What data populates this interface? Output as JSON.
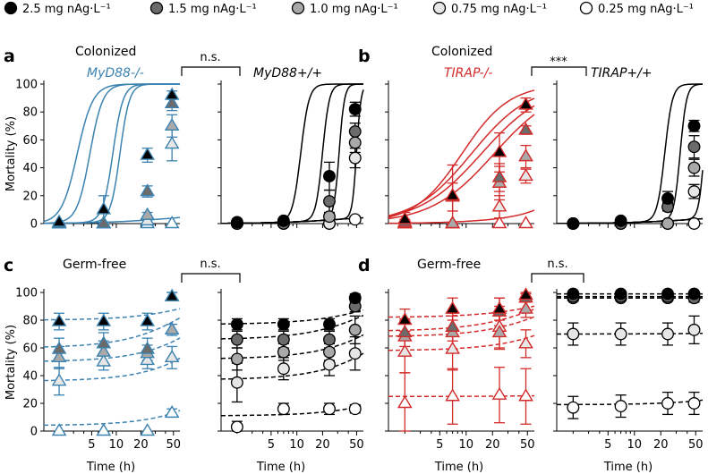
{
  "legend": {
    "entries": [
      {
        "label": "2.5 mg nAg·L⁻¹",
        "fill": "#000000"
      },
      {
        "label": "1.5 mg nAg·L⁻¹",
        "fill": "#6b6b6b"
      },
      {
        "label": "1.0 mg nAg·L⁻¹",
        "fill": "#a9a9a9"
      },
      {
        "label": "0.75 mg nAg·L⁻¹",
        "fill": "#e6e6e6"
      },
      {
        "label": "0.25 mg nAg·L⁻¹",
        "fill": "#ffffff"
      }
    ]
  },
  "colors": {
    "blue": "#3b82b0",
    "red": "#d32a2a",
    "black": "#000000"
  },
  "panel_labels": {
    "a": "a",
    "b": "b",
    "c": "c",
    "d": "d"
  },
  "titles": {
    "a": "Colonized",
    "b": "Colonized",
    "c": "Germ-free",
    "d": "Germ-free",
    "a_left": "MyD88-/-",
    "a_right": "MyD88+/+",
    "b_left": "TIRAP-/-",
    "b_right": "TIRAP+/+"
  },
  "significance": {
    "a": "n.s.",
    "b": "***",
    "c": "n.s.",
    "d": "n.s."
  },
  "axes": {
    "ylabel": "Mortality (%)",
    "xlabel": "Time (h)",
    "yticks": [
      "0",
      "20",
      "40",
      "60",
      "80",
      "100"
    ],
    "xticks": [
      "5",
      "10",
      "20",
      "50"
    ],
    "xscale": "log",
    "xlim": [
      1.3,
      60
    ],
    "ylim": [
      0,
      100
    ]
  },
  "chart_data": [
    {
      "type": "line",
      "panel": "a",
      "subpanel": "left",
      "group": "MyD88-/-",
      "curve": "sigmoid fit",
      "color": "blue",
      "marker": "triangle",
      "x": [
        2,
        7,
        24,
        48
      ],
      "series": [
        {
          "name": "2.5 mg nAg·L⁻¹",
          "values": [
            1,
            10,
            49,
            92
          ],
          "err": [
            0,
            10,
            5,
            3
          ],
          "fit": [
            0.03,
            0.3,
            4.5
          ]
        },
        {
          "name": "1.5 mg nAg·L⁻¹",
          "values": [
            0,
            0,
            23,
            86
          ],
          "err": [
            0,
            0,
            4,
            5
          ],
          "fit": [
            0.03,
            0.21,
            5.5
          ]
        },
        {
          "name": "1.0 mg nAg·L⁻¹",
          "values": [
            0,
            0,
            6,
            70
          ],
          "err": [
            0,
            0,
            2,
            8
          ],
          "fit": [
            0.03,
            0.11,
            7
          ]
        },
        {
          "name": "0.75 mg nAg·L⁻¹",
          "values": [
            0,
            0,
            2,
            57
          ],
          "err": [
            0,
            0,
            2,
            12
          ],
          "fit": [
            0.03,
            0.09,
            7.5
          ]
        },
        {
          "name": "0.25 mg nAg·L⁻¹",
          "values": [
            0,
            0,
            0,
            0
          ],
          "err": [
            0,
            0,
            0,
            0
          ],
          "fit": [
            0.03,
            0.006,
            6
          ]
        }
      ]
    },
    {
      "type": "line",
      "panel": "a",
      "subpanel": "right",
      "group": "MyD88+/+",
      "curve": "sigmoid fit",
      "color": "black",
      "marker": "circle",
      "x": [
        2,
        7,
        24,
        48
      ],
      "series": [
        {
          "name": "2.5 mg nAg·L⁻¹",
          "values": [
            1,
            2,
            34,
            82
          ],
          "err": [
            0,
            2,
            10,
            5
          ],
          "fit": [
            0.03,
            0.09,
            9
          ]
        },
        {
          "name": "1.5 mg nAg·L⁻¹",
          "values": [
            0,
            0,
            16,
            66
          ],
          "err": [
            0,
            0,
            8,
            6
          ],
          "fit": [
            0.03,
            0.05,
            11
          ]
        },
        {
          "name": "1.0 mg nAg·L⁻¹",
          "values": [
            0,
            0,
            5,
            58
          ],
          "err": [
            0,
            0,
            3,
            7
          ],
          "fit": [
            0.03,
            0.032,
            14
          ]
        },
        {
          "name": "0.75 mg nAg·L⁻¹",
          "values": [
            0,
            0,
            0,
            47
          ],
          "err": [
            0,
            0,
            0,
            7
          ],
          "fit": [
            0.03,
            0.02,
            17
          ]
        },
        {
          "name": "0.25 mg nAg·L⁻¹",
          "values": [
            0,
            0,
            0,
            3
          ],
          "err": [
            0,
            0,
            0,
            2
          ],
          "fit": [
            0.03,
            0.0012,
            20
          ]
        }
      ]
    },
    {
      "type": "line",
      "panel": "b",
      "subpanel": "left",
      "group": "TIRAP-/-",
      "curve": "sigmoid fit",
      "color": "red",
      "marker": "triangle",
      "x": [
        2,
        7,
        24,
        48
      ],
      "series": [
        {
          "name": "2.5 mg nAg·L⁻¹",
          "values": [
            3,
            20,
            51,
            85
          ],
          "err": [
            5,
            22,
            14,
            5
          ],
          "fit": [
            0.035,
            0.11,
            1.6
          ]
        },
        {
          "name": "1.5 mg nAg·L⁻¹",
          "values": [
            1,
            19,
            33,
            67
          ],
          "err": [
            2,
            10,
            10,
            3
          ],
          "fit": [
            0.035,
            0.085,
            1.3
          ]
        },
        {
          "name": "1.0 mg nAg·L⁻¹",
          "values": [
            0,
            0,
            29,
            48
          ],
          "err": [
            0,
            0,
            12,
            8
          ],
          "fit": [
            0.035,
            0.065,
            1.2
          ]
        },
        {
          "name": "0.75 mg nAg·L⁻¹",
          "values": [
            0,
            0,
            12,
            34
          ],
          "err": [
            0,
            0,
            8,
            5
          ],
          "fit": [
            0.035,
            0.046,
            1.2
          ]
        },
        {
          "name": "0.25 mg nAg·L⁻¹",
          "values": [
            0,
            0,
            0,
            0
          ],
          "err": [
            0,
            0,
            0,
            0
          ],
          "fit": [
            0.035,
            0.004,
            2
          ]
        }
      ]
    },
    {
      "type": "line",
      "panel": "b",
      "subpanel": "right",
      "group": "TIRAP+/+",
      "curve": "sigmoid fit",
      "color": "black",
      "marker": "circle",
      "x": [
        2,
        7,
        24,
        48
      ],
      "series": [
        {
          "name": "2.5 mg nAg·L⁻¹",
          "values": [
            0,
            2,
            18,
            70
          ],
          "err": [
            0,
            2,
            5,
            4
          ],
          "fit": [
            0.02,
            0.045,
            10
          ]
        },
        {
          "name": "1.5 mg nAg·L⁻¹",
          "values": [
            0,
            0,
            12,
            55
          ],
          "err": [
            0,
            0,
            3,
            8
          ],
          "fit": [
            0.02,
            0.03,
            12
          ]
        },
        {
          "name": "1.0 mg nAg·L⁻¹",
          "values": [
            0,
            0,
            0,
            40
          ],
          "err": [
            0,
            0,
            0,
            6
          ],
          "fit": [
            0.02,
            0.016,
            14
          ]
        },
        {
          "name": "0.75 mg nAg·L⁻¹",
          "values": [
            0,
            0,
            0,
            23
          ],
          "err": [
            0,
            0,
            0,
            5
          ],
          "fit": [
            0.02,
            0.008,
            16
          ]
        },
        {
          "name": "0.25 mg nAg·L⁻¹",
          "values": [
            0,
            0,
            0,
            0
          ],
          "err": [
            0,
            0,
            0,
            0
          ],
          "fit": [
            0.02,
            0.0008,
            16
          ]
        }
      ]
    },
    {
      "type": "line",
      "panel": "c",
      "subpanel": "left",
      "group": "MyD88-/-",
      "curve": "exponential fit",
      "color": "blue",
      "marker": "triangle",
      "x": [
        2,
        7,
        24,
        48
      ],
      "series": [
        {
          "name": "2.5 mg nAg·L⁻¹",
          "values": [
            79,
            79,
            79,
            97
          ],
          "err": [
            6,
            6,
            6,
            3
          ],
          "fit": [
            0.2,
            0.009
          ]
        },
        {
          "name": "1.5 mg nAg·L⁻¹",
          "values": [
            59,
            63,
            59,
            97
          ],
          "err": [
            8,
            8,
            8,
            3
          ],
          "fit": [
            0.4,
            0.013
          ]
        },
        {
          "name": "1.0 mg nAg·L⁻¹",
          "values": [
            53,
            57,
            56,
            73
          ],
          "err": [
            8,
            8,
            6,
            4
          ],
          "fit": [
            0.5,
            0.007
          ]
        },
        {
          "name": "0.75 mg nAg·L⁻¹",
          "values": [
            36,
            50,
            51,
            53
          ],
          "err": [
            10,
            6,
            6,
            8
          ],
          "fit": [
            0.64,
            0.005
          ]
        },
        {
          "name": "0.25 mg nAg·L⁻¹",
          "values": [
            0,
            0,
            0,
            13
          ],
          "err": [
            0,
            0,
            0,
            3
          ],
          "fit": [
            0.96,
            0.002
          ]
        }
      ]
    },
    {
      "type": "line",
      "panel": "c",
      "subpanel": "right",
      "group": "MyD88+/+",
      "curve": "exponential fit",
      "color": "black",
      "marker": "circle",
      "x": [
        2,
        7,
        24,
        48
      ],
      "series": [
        {
          "name": "2.5 mg nAg·L⁻¹",
          "values": [
            77,
            77,
            77,
            96
          ],
          "err": [
            4,
            4,
            4,
            3
          ],
          "fit": [
            0.23,
            0.01
          ]
        },
        {
          "name": "1.5 mg nAg·L⁻¹",
          "values": [
            66,
            66,
            66,
            90
          ],
          "err": [
            6,
            6,
            6,
            4
          ],
          "fit": [
            0.34,
            0.012
          ]
        },
        {
          "name": "1.0 mg nAg·L⁻¹",
          "values": [
            52,
            57,
            57,
            73
          ],
          "err": [
            8,
            6,
            6,
            10
          ],
          "fit": [
            0.48,
            0.0075
          ]
        },
        {
          "name": "0.75 mg nAg·L⁻¹",
          "values": [
            35,
            45,
            48,
            56
          ],
          "err": [
            14,
            8,
            8,
            12
          ],
          "fit": [
            0.63,
            0.006
          ]
        },
        {
          "name": "0.25 mg nAg·L⁻¹",
          "values": [
            3,
            16,
            16,
            16
          ],
          "err": [
            4,
            4,
            4,
            3
          ],
          "fit": [
            0.89,
            0.0015
          ]
        }
      ]
    },
    {
      "type": "line",
      "panel": "d",
      "subpanel": "left",
      "group": "TIRAP-/-",
      "curve": "exponential fit",
      "color": "red",
      "marker": "triangle",
      "x": [
        2,
        7,
        24,
        48
      ],
      "series": [
        {
          "name": "2.5 mg nAg·L⁻¹",
          "values": [
            80,
            88,
            88,
            98
          ],
          "err": [
            8,
            8,
            8,
            2
          ],
          "fit": [
            0.18,
            0.01
          ]
        },
        {
          "name": "1.5 mg nAg·L⁻¹",
          "values": [
            71,
            75,
            86,
            96
          ],
          "err": [
            10,
            10,
            10,
            3
          ],
          "fit": [
            0.28,
            0.014
          ]
        },
        {
          "name": "1.0 mg nAg·L⁻¹",
          "values": [
            68,
            71,
            71,
            88
          ],
          "err": [
            12,
            12,
            12,
            6
          ],
          "fit": [
            0.32,
            0.01
          ]
        },
        {
          "name": "0.75 mg nAg·L⁻¹",
          "values": [
            57,
            59,
            75,
            63
          ],
          "err": [
            15,
            15,
            15,
            10
          ],
          "fit": [
            0.42,
            0.005
          ]
        },
        {
          "name": "0.25 mg nAg·L⁻¹",
          "values": [
            20,
            25,
            26,
            25
          ],
          "err": [
            22,
            20,
            20,
            20
          ],
          "fit": [
            0.75,
            0.0001
          ]
        }
      ]
    },
    {
      "type": "line",
      "panel": "d",
      "subpanel": "right",
      "group": "TIRAP+/+",
      "curve": "exponential fit",
      "color": "black",
      "marker": "circle",
      "x": [
        2,
        7,
        24,
        48
      ],
      "series": [
        {
          "name": "2.5 mg nAg·L⁻¹",
          "values": [
            99,
            99,
            99,
            99
          ],
          "err": [
            2,
            2,
            2,
            2
          ],
          "fit": [
            0.01,
            0.0
          ]
        },
        {
          "name": "1.5 mg nAg·L⁻¹",
          "values": [
            97,
            97,
            97,
            96
          ],
          "err": [
            3,
            3,
            3,
            3
          ],
          "fit": [
            0.03,
            0.0
          ]
        },
        {
          "name": "1.0 mg nAg·L⁻¹",
          "values": [
            96,
            96,
            96,
            96
          ],
          "err": [
            2,
            2,
            2,
            2
          ],
          "fit": [
            0.04,
            0.0
          ]
        },
        {
          "name": "0.75 mg nAg·L⁻¹",
          "values": [
            70,
            70,
            70,
            73
          ],
          "err": [
            8,
            8,
            8,
            10
          ],
          "fit": [
            0.3,
            0.0003
          ]
        },
        {
          "name": "0.25 mg nAg·L⁻¹",
          "values": [
            17,
            18,
            20,
            20
          ],
          "err": [
            8,
            8,
            8,
            8
          ],
          "fit": [
            0.81,
            0.0007
          ]
        }
      ]
    }
  ]
}
